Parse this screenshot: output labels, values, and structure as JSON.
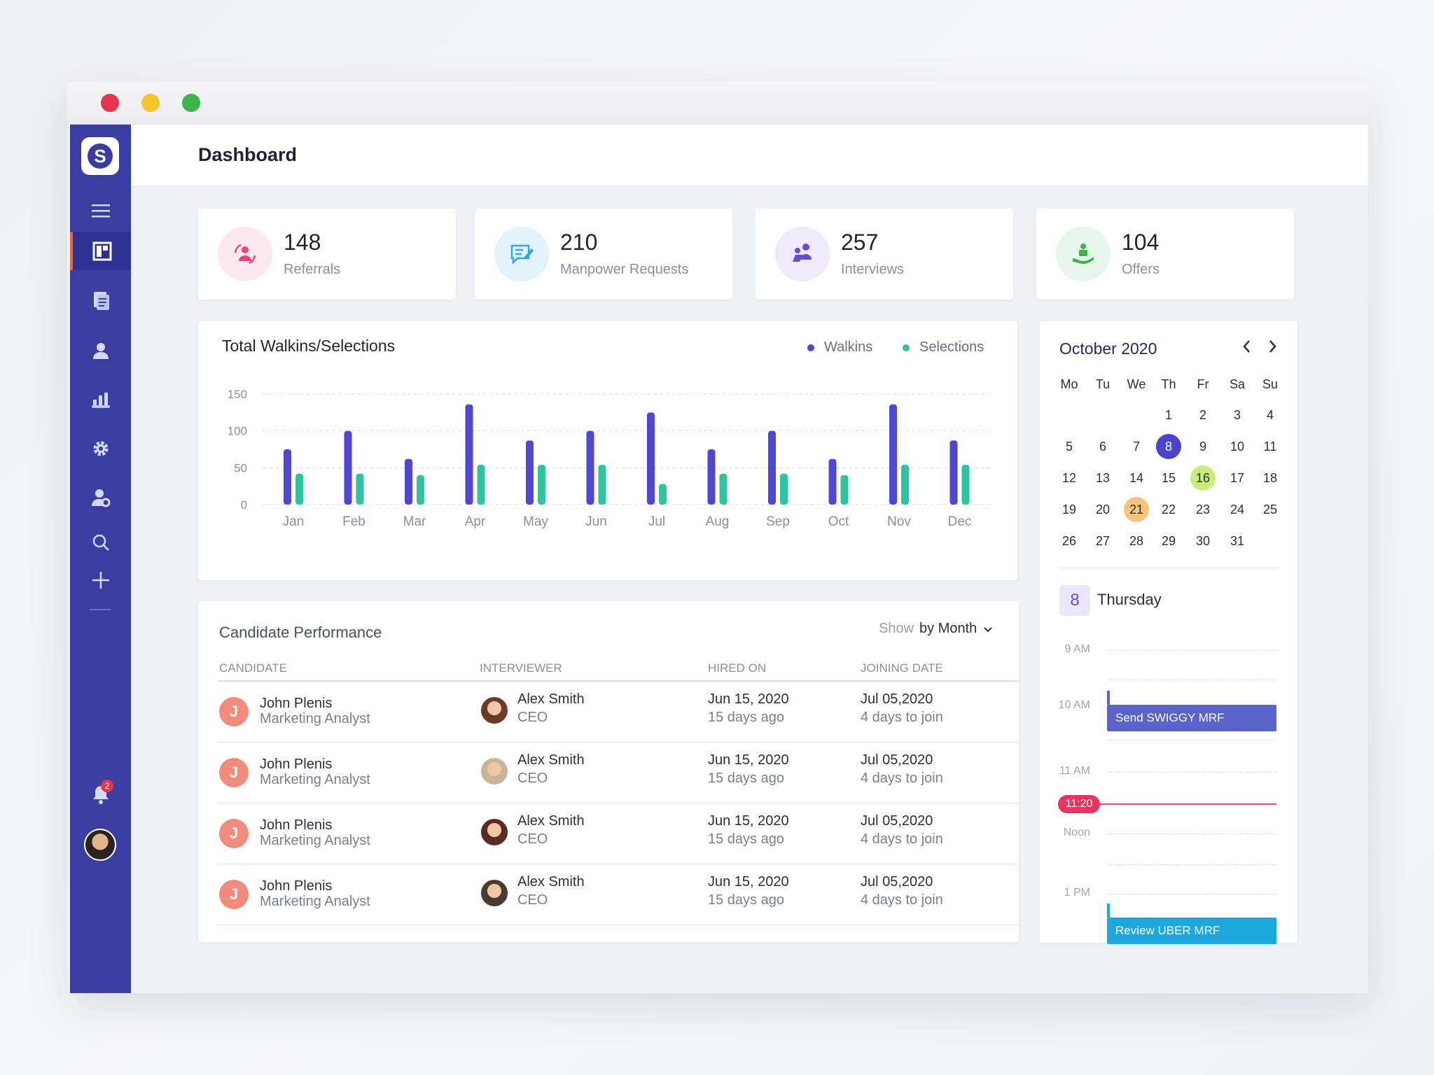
{
  "header": {
    "title": "Dashboard"
  },
  "sidebar": {
    "logo_letter": "S",
    "notification_count": "2"
  },
  "stats": [
    {
      "value": "148",
      "label": "Referrals",
      "icon": "referrals-icon",
      "color": "#e8457a",
      "bg": "#fde8ef"
    },
    {
      "value": "210",
      "label": "Manpower Requests",
      "icon": "requests-icon",
      "color": "#2fa8e0",
      "bg": "#e3f3fb"
    },
    {
      "value": "257",
      "label": "Interviews",
      "icon": "interviews-icon",
      "color": "#6a48d8",
      "bg": "#eee9fb"
    },
    {
      "value": "104",
      "label": "Offers",
      "icon": "offers-icon",
      "color": "#3cb44a",
      "bg": "#e6f6e8"
    }
  ],
  "chart_card": {
    "title": "Total Walkins/Selections",
    "legend": {
      "walkins": "Walkins",
      "selections": "Selections"
    }
  },
  "chart_data": {
    "type": "bar",
    "title": "Total Walkins/Selections",
    "categories": [
      "Jan",
      "Feb",
      "Mar",
      "Apr",
      "May",
      "Jun",
      "Jul",
      "Aug",
      "Sep",
      "Oct",
      "Nov",
      "Dec"
    ],
    "series": [
      {
        "name": "Walkins",
        "color": "#5046d6",
        "values": [
          75,
          100,
          62,
          136,
          87,
          100,
          125,
          75,
          100,
          62,
          136,
          87
        ]
      },
      {
        "name": "Selections",
        "color": "#2ec4a0",
        "values": [
          42,
          42,
          40,
          54,
          54,
          54,
          28,
          42,
          42,
          40,
          54,
          54
        ]
      }
    ],
    "yticks": [
      "150",
      "100",
      "50",
      "0"
    ],
    "ylim": [
      0,
      150
    ],
    "grid": true,
    "legend_position": "top-right"
  },
  "calendar": {
    "month": "October 2020",
    "weekdays": [
      "Mo",
      "Tu",
      "We",
      "Th",
      "Fr",
      "Sa",
      "Su"
    ],
    "days": [
      "1",
      "2",
      "3",
      "4",
      "5",
      "6",
      "7",
      "8",
      "9",
      "10",
      "11",
      "12",
      "13",
      "14",
      "15",
      "16",
      "17",
      "18",
      "19",
      "20",
      "21",
      "22",
      "23",
      "24",
      "25",
      "26",
      "27",
      "28",
      "29",
      "30",
      "31"
    ],
    "first_weekday_index": 3,
    "selected_day": "8",
    "highlight_green": "16",
    "highlight_orange": "21",
    "selected_day_name": "Thursday"
  },
  "schedule": {
    "hours": [
      "9 AM",
      "10 AM",
      "11 AM",
      "Noon",
      "1 PM"
    ],
    "now": "11:20",
    "events": [
      {
        "title": "Send SWIGGY MRF",
        "color": "#5a64c8"
      },
      {
        "title": "Review UBER MRF",
        "color": "#1fa8df"
      }
    ]
  },
  "performance": {
    "title": "Candidate Performance",
    "show_label": "Show",
    "filter_value": "by Month",
    "columns": [
      "CANDIDATE",
      "INTERVIEWER",
      "HIRED ON",
      "JOINING DATE"
    ],
    "rows": [
      {
        "initial": "J",
        "name": "John Plenis",
        "role": "Marketing Analyst",
        "interviewer": "Alex Smith",
        "int_role": "CEO",
        "hired": "Jun 15, 2020",
        "hired_ago": "15 days ago",
        "join": "Jul 05,2020",
        "join_in": "4 days to join"
      },
      {
        "initial": "J",
        "name": "John Plenis",
        "role": "Marketing Analyst",
        "interviewer": "Alex Smith",
        "int_role": "CEO",
        "hired": "Jun 15, 2020",
        "hired_ago": "15 days ago",
        "join": "Jul 05,2020",
        "join_in": "4 days to join"
      },
      {
        "initial": "J",
        "name": "John Plenis",
        "role": "Marketing Analyst",
        "interviewer": "Alex Smith",
        "int_role": "CEO",
        "hired": "Jun 15, 2020",
        "hired_ago": "15 days ago",
        "join": "Jul 05,2020",
        "join_in": "4 days to join"
      },
      {
        "initial": "J",
        "name": "John Plenis",
        "role": "Marketing Analyst",
        "interviewer": "Alex Smith",
        "int_role": "CEO",
        "hired": "Jun 15, 2020",
        "hired_ago": "15 days ago",
        "join": "Jul 05,2020",
        "join_in": "4 days to join"
      }
    ]
  }
}
